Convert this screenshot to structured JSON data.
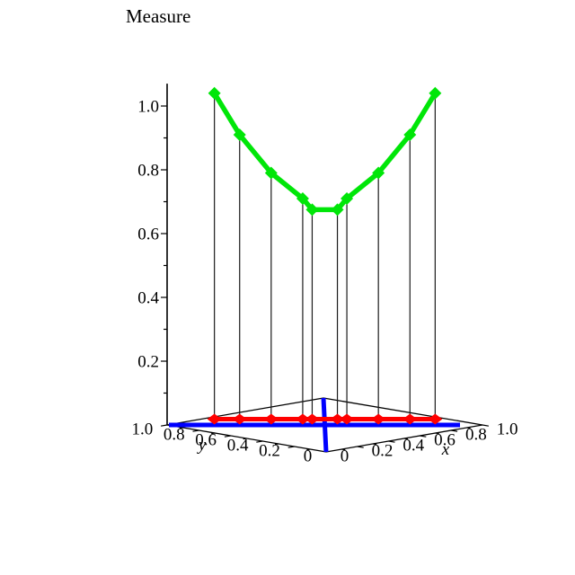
{
  "page": {
    "background": "#FFFFFF"
  },
  "chart_data": {
    "type": "line",
    "projection": "3d-orthographic",
    "title": "Measure",
    "x_points": [
      0.15,
      0.23,
      0.33,
      0.43,
      0.46,
      0.54,
      0.57,
      0.67,
      0.77,
      0.85
    ],
    "y_points": [
      0.85,
      0.77,
      0.67,
      0.57,
      0.54,
      0.46,
      0.43,
      0.33,
      0.23,
      0.15
    ],
    "series": [
      {
        "name": "measure-curve",
        "color": "#00E608",
        "marker": "diamond",
        "values": [
          1.04,
          0.91,
          0.79,
          0.71,
          0.675,
          0.675,
          0.71,
          0.79,
          0.91,
          1.04
        ]
      },
      {
        "name": "base-projection",
        "color": "#FF0000",
        "marker": "diamond",
        "values": [
          0,
          0,
          0,
          0,
          0,
          0,
          0,
          0,
          0,
          0
        ]
      }
    ],
    "guides": [
      {
        "name": "diagonal-x-equals-y",
        "color": "#0000FF"
      },
      {
        "name": "antidiagonal-x-plus-y-equals-1",
        "color": "#0000FF"
      }
    ],
    "drop_lines": true,
    "vertical_axis": {
      "label": "Measure",
      "tick_labels": [
        "0.2",
        "0.4",
        "0.6",
        "0.8",
        "1.0"
      ],
      "tick_values": [
        0.2,
        0.4,
        0.6,
        0.8,
        1.0
      ],
      "minor_step": 0.1,
      "range": [
        0,
        1.07
      ]
    },
    "x_axis": {
      "label": "x",
      "tick_labels": [
        "0",
        "0.2",
        "0.4",
        "0.6",
        "0.8",
        "1.0"
      ],
      "tick_values": [
        0,
        0.2,
        0.4,
        0.6,
        0.8,
        1.0
      ],
      "minor_step": 0.1,
      "range": [
        0,
        1
      ]
    },
    "y_axis": {
      "label": "y",
      "tick_labels": [
        "1.0",
        "0.8",
        "0.6",
        "0.4",
        "0.2",
        "0"
      ],
      "tick_values": [
        1.0,
        0.8,
        0.6,
        0.4,
        0.2,
        0
      ],
      "minor_step": 0.1,
      "range": [
        0,
        1
      ]
    },
    "colors": {
      "edges": "#000000",
      "drop_lines": "#1a1a1a",
      "ticks": "#000000"
    }
  }
}
